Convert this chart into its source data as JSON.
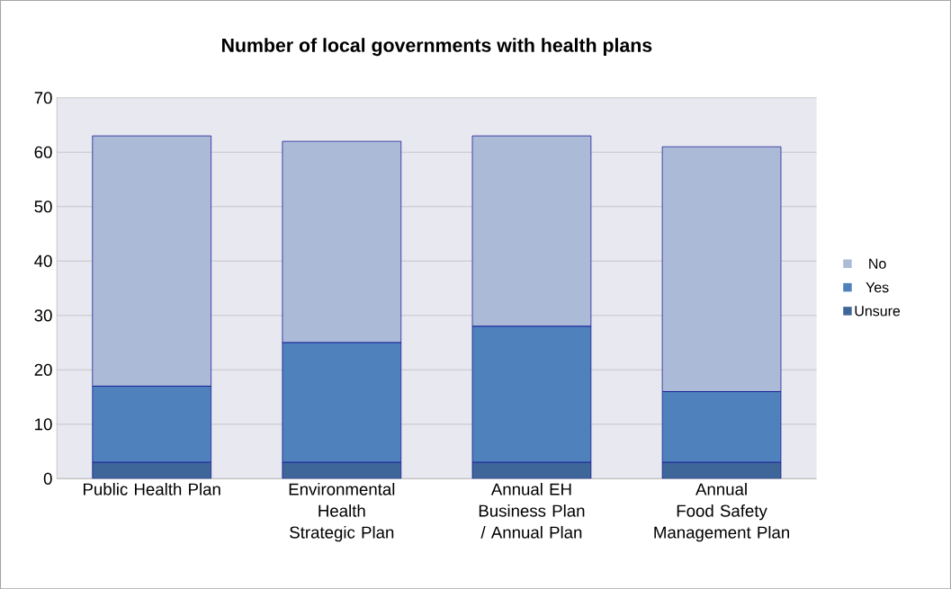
{
  "chart_data": {
    "type": "bar",
    "stacked": true,
    "title": "Number of local governments with health plans",
    "categories": [
      "Public Health Plan",
      "Environmental Health Strategic Plan",
      "Annual EH Business Plan / Annual Plan",
      "Annual Food Safety Management Plan"
    ],
    "series": [
      {
        "name": "Unsure",
        "color": "#3f6699",
        "values": [
          3,
          3,
          3,
          3
        ]
      },
      {
        "name": "Yes",
        "color": "#4f81bd",
        "values": [
          14,
          22,
          25,
          13
        ]
      },
      {
        "name": "No",
        "color": "#aabad7",
        "values": [
          46,
          37,
          35,
          45
        ]
      }
    ],
    "ylim": [
      0,
      70
    ],
    "yticks": [
      0,
      10,
      20,
      30,
      40,
      50,
      60,
      70
    ],
    "grid": "y",
    "legend": "right"
  }
}
